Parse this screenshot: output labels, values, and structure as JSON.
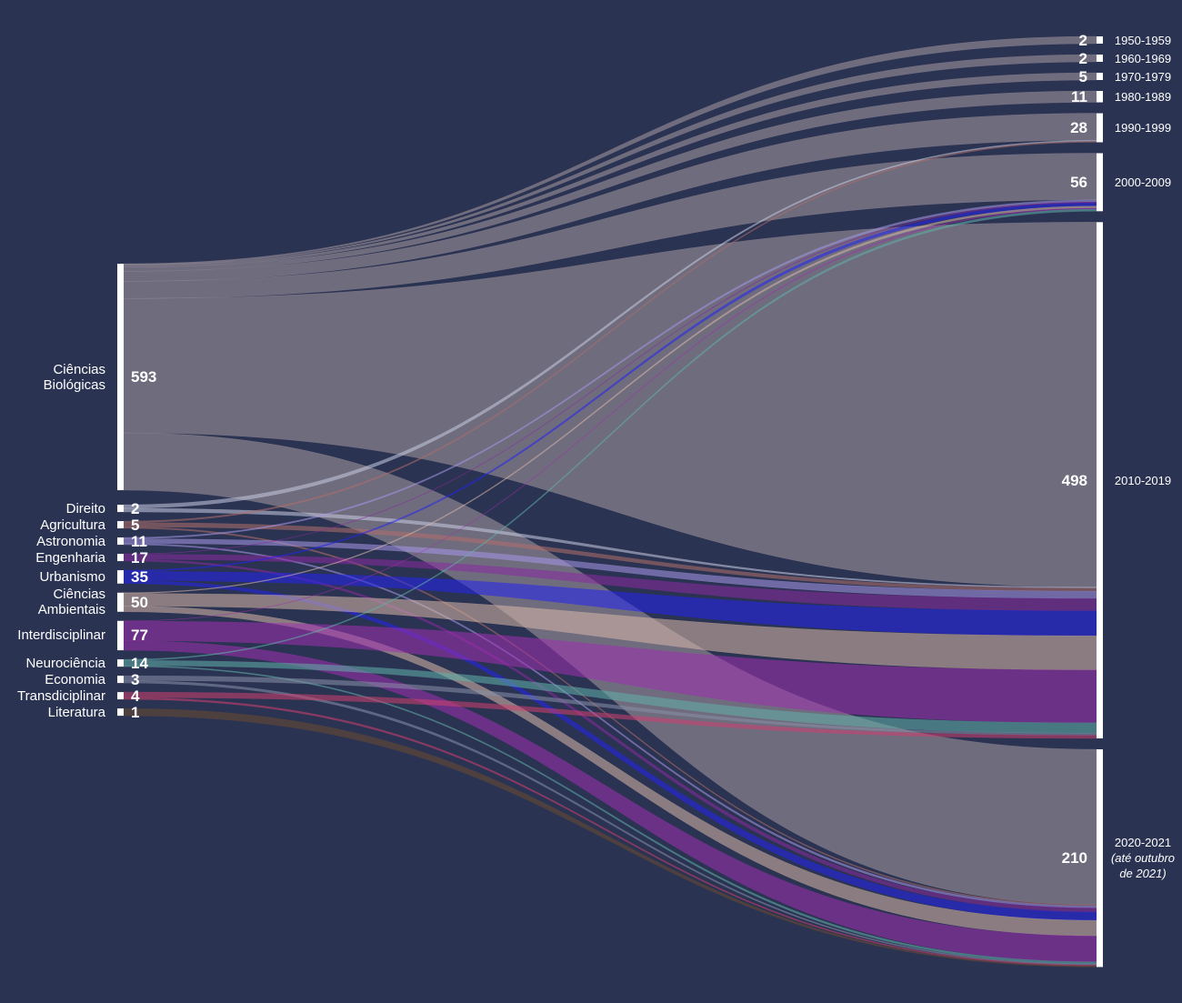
{
  "chart_data": {
    "type": "sankey",
    "sources": [
      {
        "name": "Ciências Biológicas",
        "value": 593,
        "color": "#a89aa2"
      },
      {
        "name": "Direito",
        "value": 2,
        "color": "#c8cce0"
      },
      {
        "name": "Agricultura",
        "value": 5,
        "color": "#b0706a"
      },
      {
        "name": "Astronomia",
        "value": 11,
        "color": "#a898e8"
      },
      {
        "name": "Engenharia",
        "value": 17,
        "color": "#8a2aa0"
      },
      {
        "name": "Urbanismo",
        "value": 35,
        "color": "#2424f0"
      },
      {
        "name": "Ciências Ambientais",
        "value": 50,
        "color": "#d8b8a8"
      },
      {
        "name": "Interdisciplinar",
        "value": 77,
        "color": "#a030b0"
      },
      {
        "name": "Neurociência",
        "value": 14,
        "color": "#60b0a8"
      },
      {
        "name": "Economia",
        "value": 3,
        "color": "#8890a8"
      },
      {
        "name": "Transdiciplinar",
        "value": 4,
        "color": "#d04070"
      },
      {
        "name": "Literatura",
        "value": 1,
        "color": "#6a4a30"
      }
    ],
    "targets": [
      {
        "name": "1950-1959",
        "value": 2
      },
      {
        "name": "1960-1969",
        "value": 2
      },
      {
        "name": "1970-1979",
        "value": 5
      },
      {
        "name": "1980-1989",
        "value": 11
      },
      {
        "name": "1990-1999",
        "value": 28
      },
      {
        "name": "2000-2009",
        "value": 56
      },
      {
        "name": "2010-2019",
        "value": 498
      },
      {
        "name": "2020-2021",
        "value": 210,
        "note": "(até outubro de 2021)"
      }
    ],
    "links": [
      {
        "source": 0,
        "target": 0,
        "value": 2
      },
      {
        "source": 0,
        "target": 1,
        "value": 2
      },
      {
        "source": 0,
        "target": 2,
        "value": 5
      },
      {
        "source": 0,
        "target": 3,
        "value": 11
      },
      {
        "source": 0,
        "target": 4,
        "value": 26
      },
      {
        "source": 0,
        "target": 5,
        "value": 45
      },
      {
        "source": 0,
        "target": 6,
        "value": 352
      },
      {
        "source": 0,
        "target": 7,
        "value": 150
      },
      {
        "source": 1,
        "target": 4,
        "value": 1
      },
      {
        "source": 1,
        "target": 6,
        "value": 1
      },
      {
        "source": 2,
        "target": 4,
        "value": 1
      },
      {
        "source": 2,
        "target": 6,
        "value": 3
      },
      {
        "source": 2,
        "target": 7,
        "value": 1
      },
      {
        "source": 3,
        "target": 5,
        "value": 2
      },
      {
        "source": 3,
        "target": 6,
        "value": 7
      },
      {
        "source": 3,
        "target": 7,
        "value": 2
      },
      {
        "source": 4,
        "target": 5,
        "value": 1
      },
      {
        "source": 4,
        "target": 6,
        "value": 12
      },
      {
        "source": 4,
        "target": 7,
        "value": 4
      },
      {
        "source": 5,
        "target": 5,
        "value": 3
      },
      {
        "source": 5,
        "target": 6,
        "value": 24
      },
      {
        "source": 5,
        "target": 7,
        "value": 8
      },
      {
        "source": 6,
        "target": 5,
        "value": 2
      },
      {
        "source": 6,
        "target": 6,
        "value": 33
      },
      {
        "source": 6,
        "target": 7,
        "value": 15
      },
      {
        "source": 7,
        "target": 5,
        "value": 1
      },
      {
        "source": 7,
        "target": 6,
        "value": 51
      },
      {
        "source": 7,
        "target": 7,
        "value": 25
      },
      {
        "source": 8,
        "target": 5,
        "value": 2
      },
      {
        "source": 8,
        "target": 6,
        "value": 10
      },
      {
        "source": 8,
        "target": 7,
        "value": 2
      },
      {
        "source": 9,
        "target": 6,
        "value": 2
      },
      {
        "source": 9,
        "target": 7,
        "value": 1
      },
      {
        "source": 10,
        "target": 6,
        "value": 3
      },
      {
        "source": 10,
        "target": 7,
        "value": 1
      },
      {
        "source": 11,
        "target": 7,
        "value": 1
      }
    ]
  }
}
